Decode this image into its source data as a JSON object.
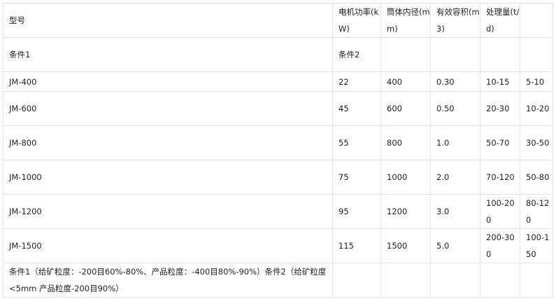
{
  "headers": [
    "型号",
    "电机功率(kW)",
    "筒体内径(mm)",
    "有效容积(m3)",
    "处理量(t/d)",
    ""
  ],
  "conditions_row": [
    "条件1",
    "条件2"
  ],
  "rows": [
    [
      "JM-400",
      "22",
      "400",
      "0.30",
      "10-15",
      "5-10"
    ],
    [
      "JM-600",
      "45",
      "600",
      "0.50",
      "20-30",
      "10-20"
    ],
    [
      "JM-800",
      "55",
      "800",
      "1.0",
      "50-70",
      "30-50"
    ],
    [
      "JM-1000",
      "75",
      "1000",
      "2.0",
      "70-120",
      "50-80"
    ],
    [
      "JM-1200",
      "95",
      "1200",
      "3.0",
      "100-200",
      "80-120"
    ],
    [
      "JM-1500",
      "115",
      "1500",
      "5.0",
      "200-300",
      "100-150"
    ]
  ],
  "footnote": "条件1（给矿粒度：-200目60%-80%、产品粒度：-400目80%-90%）条件2（给矿粒度<5mm 产品粒度-200目90%）"
}
